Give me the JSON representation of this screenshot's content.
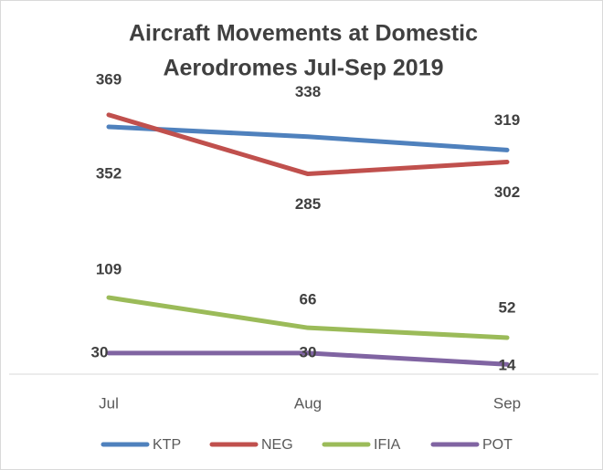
{
  "chart_data": {
    "type": "line",
    "title": [
      "Aircraft Movements at Domestic",
      "Aerodromes Jul-Sep 2019"
    ],
    "categories": [
      "Jul",
      "Aug",
      "Sep"
    ],
    "series": [
      {
        "name": "KTP",
        "color": "#4f81bd",
        "values": [
          352,
          338,
          319
        ]
      },
      {
        "name": "NEG",
        "color": "#c0504d",
        "values": [
          369,
          285,
          302
        ]
      },
      {
        "name": "IFIA",
        "color": "#9bbb59",
        "values": [
          109,
          66,
          52
        ]
      },
      {
        "name": "POT",
        "color": "#8064a2",
        "values": [
          30,
          30,
          14
        ]
      }
    ],
    "ylim": [
      0,
      400
    ],
    "legend": "bottom"
  }
}
